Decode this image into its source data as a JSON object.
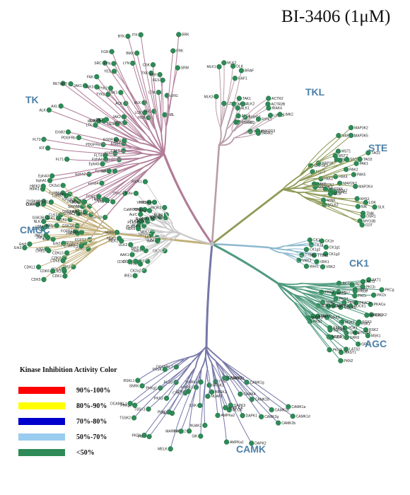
{
  "title": "BI-3406 (1μM)",
  "groups": [
    {
      "id": "tk",
      "name": "TK",
      "color": "#b07c98"
    },
    {
      "id": "tkl",
      "name": "TKL",
      "color": "#b89ca9"
    },
    {
      "id": "ste",
      "name": "STE",
      "color": "#8e9a55"
    },
    {
      "id": "ck1",
      "name": "CK1",
      "color": "#8cb9cf"
    },
    {
      "id": "agc",
      "name": "AGC",
      "color": "#4f9a7e"
    },
    {
      "id": "camk",
      "name": "CAMK",
      "color": "#7577a8"
    },
    {
      "id": "cmgc",
      "name": "CMGC",
      "color": "#c2b079"
    }
  ],
  "legend": {
    "title": "Kinase Inhibition Activity Color",
    "items": [
      {
        "label": "90%-100%",
        "color": "#ff0000"
      },
      {
        "label": "80%-90%",
        "color": "#ffff00"
      },
      {
        "label": "70%-80%",
        "color": "#0000cc"
      },
      {
        "label": "50%-70%",
        "color": "#99ccee"
      },
      {
        "label": "<50%",
        "color": "#2e8b57"
      }
    ]
  },
  "dot_color": "#2e8b57",
  "kinases": {
    "tk": [
      "FGFR2",
      "FGFR3",
      "TRKC",
      "FGFR1",
      "FGFR4",
      "TRKB",
      "TRKA",
      "MUSK",
      "DDR1",
      "DDR2",
      "INSR",
      "IGF1R",
      "EphB4",
      "EphB1",
      "EphB3",
      "EphA6",
      "EphA8",
      "EphA2",
      "EphA1",
      "EphA3",
      "EphA5",
      "EphB2",
      "EphA4",
      "FLT1",
      "FLT4",
      "KDR",
      "KIT",
      "CSFR",
      "FLT3",
      "PDGFRa",
      "PDGFRb",
      "ErbB2",
      "ErbB4",
      "EGFR",
      "ROS",
      "ALK",
      "LTK",
      "AXL",
      "MER",
      "TYRO3",
      "TIE2",
      "TIE1",
      "RET",
      "MET",
      "RON",
      "JAK1",
      "JAK2",
      "JAK3",
      "TYK2",
      "FAK",
      "PYK2",
      "ACK",
      "TNK1",
      "SRC",
      "YES",
      "FYN",
      "FGR",
      "LCK",
      "HCK",
      "BLK",
      "LYN",
      "BTK",
      "BMX",
      "TEC",
      "ITK",
      "TXK",
      "CSK",
      "CTK",
      "FER",
      "FES",
      "ABL",
      "ARG",
      "FRK",
      "BRK",
      "SRM"
    ],
    "tkl": [
      "MLK3",
      "MLK1",
      "MLK2",
      "LZK",
      "DLK",
      "RAF1",
      "BRAF",
      "ARAF",
      "TAK1",
      "ALK1",
      "ALK2",
      "ALK4",
      "TGFbR1",
      "TGFbR2",
      "BMPR2",
      "ACTR2",
      "ACTR2B",
      "IRAK4",
      "RIPK2",
      "LIMK1",
      "LIMK2",
      "TESK1",
      "ANKRD3",
      "LRRK2"
    ],
    "ste": [
      "MAP3K1",
      "MAP3K2",
      "MAP3K3",
      "MAP3K5",
      "MAP3K7",
      "MST1",
      "MST2",
      "MST3",
      "MST4",
      "YSK1",
      "TAO1",
      "TAO2",
      "TAO3",
      "PAK1",
      "PAK2",
      "PAK3",
      "PAK4",
      "PAK5",
      "PAK6",
      "MAP2K1",
      "MAP2K2",
      "MAP2K3",
      "MAP2K4",
      "MAP2K6",
      "MAP2K7",
      "HPK1",
      "GCK",
      "KHS1",
      "LOK",
      "SLK",
      "NIK",
      "MINK",
      "TNIK",
      "OSR1",
      "STLK3",
      "MYO3B",
      "COT"
    ],
    "ck1": [
      "CK1d",
      "CK1e",
      "CK1a",
      "CK1g1",
      "CK1g2",
      "CK1g3",
      "TTBK1",
      "TTBK2",
      "VRK1",
      "VRK2",
      "VRK3",
      "Wee1"
    ],
    "agc": [
      "AKT1",
      "AKT2",
      "AKT3",
      "PKCa",
      "PKCb",
      "PKCg",
      "PKCd",
      "PKCe",
      "PKCh",
      "PKCi",
      "PKCt",
      "PKCz",
      "PRKX",
      "PKACa",
      "PKACb",
      "PKG1",
      "PKG2",
      "ROCK1",
      "ROCK2",
      "MRCKa",
      "MRCKb",
      "DMPK1",
      "SGK1",
      "SGK2",
      "SGK3",
      "RSK1",
      "RSK2",
      "RSK3",
      "MSK1",
      "MSK2",
      "p70S6K",
      "PDK1",
      "GRK2",
      "GRK4",
      "GRK5",
      "GRK6",
      "GRK7",
      "BARK1",
      "BARK2",
      "LATS1",
      "LATS2",
      "NDR1",
      "NDR2",
      "MAST1",
      "MAST2",
      "PKN1",
      "PKN2",
      "PKN3"
    ],
    "camk": [
      "CAMK1a",
      "CAMK1d",
      "CAMK1g",
      "CAMK2a",
      "CAMK2b",
      "CAMK2d",
      "CAMK2g",
      "CAMK4",
      "CAMKK1",
      "CAMKK2",
      "DAPK1",
      "DAPK2",
      "DAPK3",
      "MLCK",
      "smMLCK",
      "TTN",
      "AMPKa1",
      "AMPKa2",
      "BRSK1",
      "BRSK2",
      "NUAK1",
      "NUAK2",
      "SIK",
      "QSK",
      "MARK1",
      "MARK2",
      "MARK3",
      "MARK4",
      "MELK",
      "CHK1",
      "CHK2",
      "PIM1",
      "PIM2",
      "PIM3",
      "PKD1",
      "PKD2",
      "PKD3",
      "TSSK1",
      "TSSK2",
      "PHKg1",
      "PHKg2",
      "DCAMKL1",
      "DCAMKL2",
      "SNRK",
      "PASK",
      "RSKL1"
    ],
    "cmgc": [
      "CDK1",
      "CDK2",
      "CDK3",
      "CDK4",
      "CDK5",
      "CDK6",
      "CDK7",
      "CDK8",
      "CDK9",
      "CDKL1",
      "CDKL5",
      "PCTAIRE1",
      "PCTAIRE2",
      "PFTAIRE1",
      "CHED",
      "Erk1",
      "Erk2",
      "Erk3",
      "Erk5",
      "Erk7",
      "JNK1",
      "JNK2",
      "JNK3",
      "p38a",
      "p38b",
      "p38d",
      "p38g",
      "NLK",
      "GSK3A",
      "GSK3B",
      "CLK1",
      "CLK2",
      "CLK3",
      "CLK4",
      "DYRK1A",
      "DYRK1B",
      "DYRK2",
      "DYRK3",
      "DYRK4",
      "HIPK1",
      "HIPK2",
      "HIPK3",
      "HIPK4",
      "SRPK1",
      "SRPK2",
      "CK2a1",
      "CK2a2"
    ],
    "atypical": [
      "CK2a",
      "CK2a2",
      "IRE1",
      "IRE2",
      "TTK",
      "PEK",
      "GCN2",
      "CDC7",
      "Haspin",
      "AAK1",
      "BIKE",
      "GAK",
      "ULK1",
      "ULK2",
      "ULK3",
      "NEK1",
      "NEK2",
      "NEK4",
      "NEK6",
      "NEK7",
      "NEK9",
      "PLK1",
      "PLK2",
      "PLK3",
      "PLK4",
      "AurA",
      "AurB",
      "AurC",
      "CaMKK1",
      "CaMKK2",
      "TBK1",
      "IKKa",
      "IKKb",
      "IKKe",
      "VRK1",
      "SgK496",
      "PIK3R4",
      "BUB1",
      "RIOK1",
      "RIOK2"
    ]
  }
}
